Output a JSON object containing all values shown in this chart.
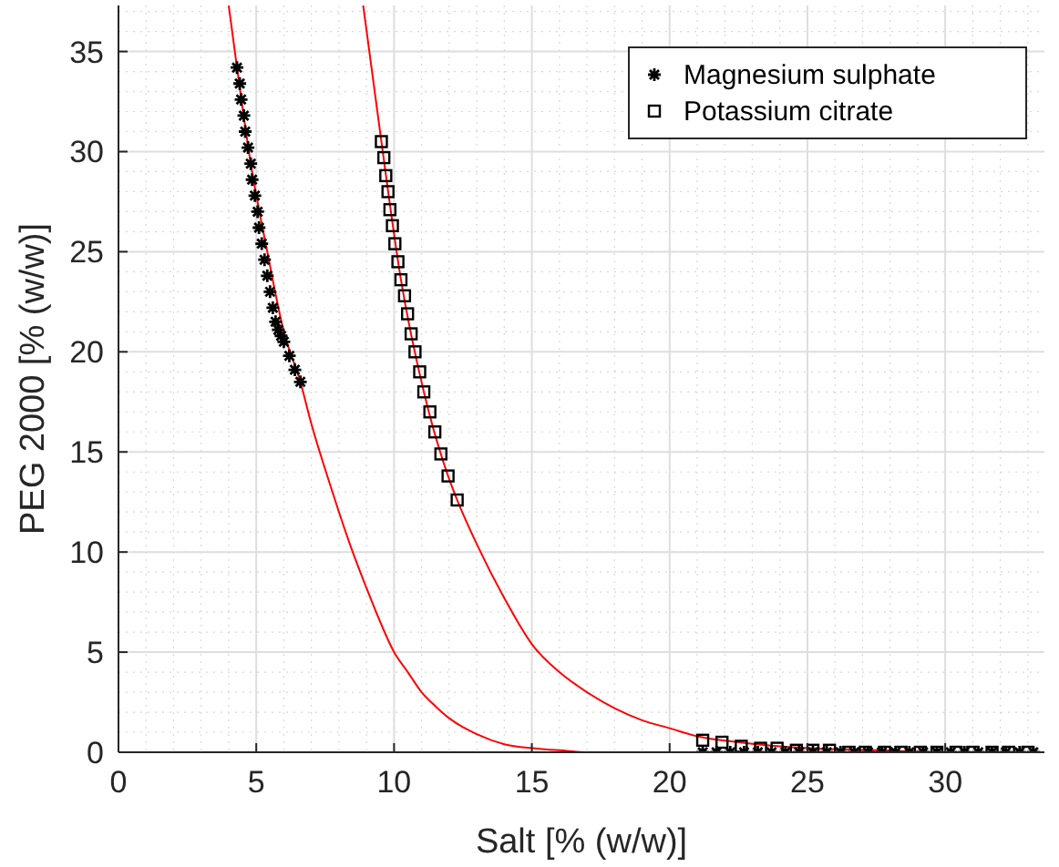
{
  "chart_data": {
    "type": "scatter",
    "xlabel": "Salt [% (w/w)]",
    "ylabel": "PEG 2000 [% (w/w)]",
    "xlim": [
      0,
      33.6
    ],
    "ylim": [
      0,
      37.3
    ],
    "xticks": [
      0,
      5,
      10,
      15,
      20,
      25,
      30
    ],
    "yticks": [
      0,
      5,
      10,
      15,
      20,
      25,
      30,
      35
    ],
    "grid": true,
    "legend": "top right",
    "series": [
      {
        "type": "line",
        "color": "#ff0000",
        "marker": "none",
        "line_style": "solid",
        "x": [
          4.0,
          4.3,
          4.8,
          5.4,
          6.0,
          6.6,
          7.0,
          7.6,
          8.0,
          8.5,
          9.0,
          9.5,
          10,
          10.5,
          11,
          11.5,
          12,
          13,
          14,
          15,
          16,
          17,
          20,
          25,
          30,
          33.6
        ],
        "values": [
          37.3,
          34.2,
          29.4,
          25.0,
          21.0,
          18.5,
          16.4,
          13.7,
          12.0,
          10.0,
          8.2,
          6.5,
          5.0,
          4.0,
          3.0,
          2.3,
          1.7,
          0.9,
          0.4,
          0.2,
          0.1,
          0,
          0,
          0,
          0,
          0
        ]
      },
      {
        "type": "line",
        "color": "#ff0000",
        "marker": "none",
        "line_style": "solid",
        "x": [
          8.88,
          9.54,
          10.25,
          11.08,
          11.96,
          12.29,
          13,
          14,
          15,
          16,
          17,
          18,
          19,
          20,
          21,
          22.5,
          25,
          27.5,
          30,
          33.6
        ],
        "values": [
          37.3,
          30.5,
          23.6,
          18.0,
          13.8,
          12.6,
          10.4,
          7.7,
          5.4,
          4.0,
          3.0,
          2.2,
          1.6,
          1.2,
          0.8,
          0.5,
          0.2,
          0.1,
          0,
          0
        ]
      },
      {
        "name": "Magnesium sulphate",
        "type": "scatter",
        "color": "#000000",
        "marker": "cross",
        "x": [
          4.3,
          4.4,
          4.45,
          4.55,
          4.6,
          4.7,
          4.8,
          4.85,
          4.95,
          5.05,
          5.1,
          5.2,
          5.3,
          5.4,
          5.5,
          5.6,
          5.7,
          5.8,
          5.9,
          6.0,
          6.2,
          6.4,
          6.6,
          21.2,
          21.7,
          22.2,
          22.7,
          23.2,
          23.7,
          24.2,
          24.7,
          25.2,
          25.7,
          26.2,
          26.7,
          27.2,
          27.7,
          28.2,
          28.7,
          29.2,
          29.7,
          30.2,
          30.7,
          31.2,
          31.7,
          32.2,
          32.7,
          33.2
        ],
        "values": [
          34.2,
          33.4,
          32.6,
          31.8,
          31.0,
          30.2,
          29.4,
          28.6,
          27.8,
          27.0,
          26.2,
          25.4,
          24.6,
          23.8,
          23.0,
          22.2,
          21.5,
          21.1,
          20.8,
          20.5,
          19.8,
          19.1,
          18.5,
          0,
          0,
          0,
          0,
          0,
          0,
          0,
          0,
          0,
          0,
          0,
          0,
          0,
          0,
          0,
          0,
          0,
          0,
          0,
          0,
          0,
          0,
          0,
          0,
          0
        ]
      },
      {
        "name": "Potassium citrate",
        "type": "scatter",
        "color": "#000000",
        "marker": "square",
        "x": [
          9.54,
          9.63,
          9.7,
          9.78,
          9.85,
          9.94,
          10.03,
          10.14,
          10.25,
          10.38,
          10.49,
          10.62,
          10.76,
          10.93,
          11.08,
          11.3,
          11.48,
          11.7,
          11.96,
          12.29,
          21.2,
          21.9,
          22.6,
          23.3,
          23.9,
          24.6,
          25.2,
          25.8,
          26.5,
          27.1,
          27.8,
          28.4,
          29.1,
          29.7,
          30.4,
          31.0,
          31.7,
          32.3,
          33.0
        ],
        "values": [
          30.5,
          29.7,
          28.8,
          28.0,
          27.1,
          26.3,
          25.4,
          24.5,
          23.6,
          22.8,
          21.9,
          20.9,
          20.0,
          19.0,
          18.0,
          17.0,
          16.0,
          14.9,
          13.8,
          12.6,
          0.6,
          0.5,
          0.3,
          0.2,
          0.2,
          0.1,
          0.1,
          0.1,
          0,
          0,
          0,
          0,
          0,
          0,
          0,
          0,
          0,
          0,
          0
        ]
      }
    ]
  }
}
